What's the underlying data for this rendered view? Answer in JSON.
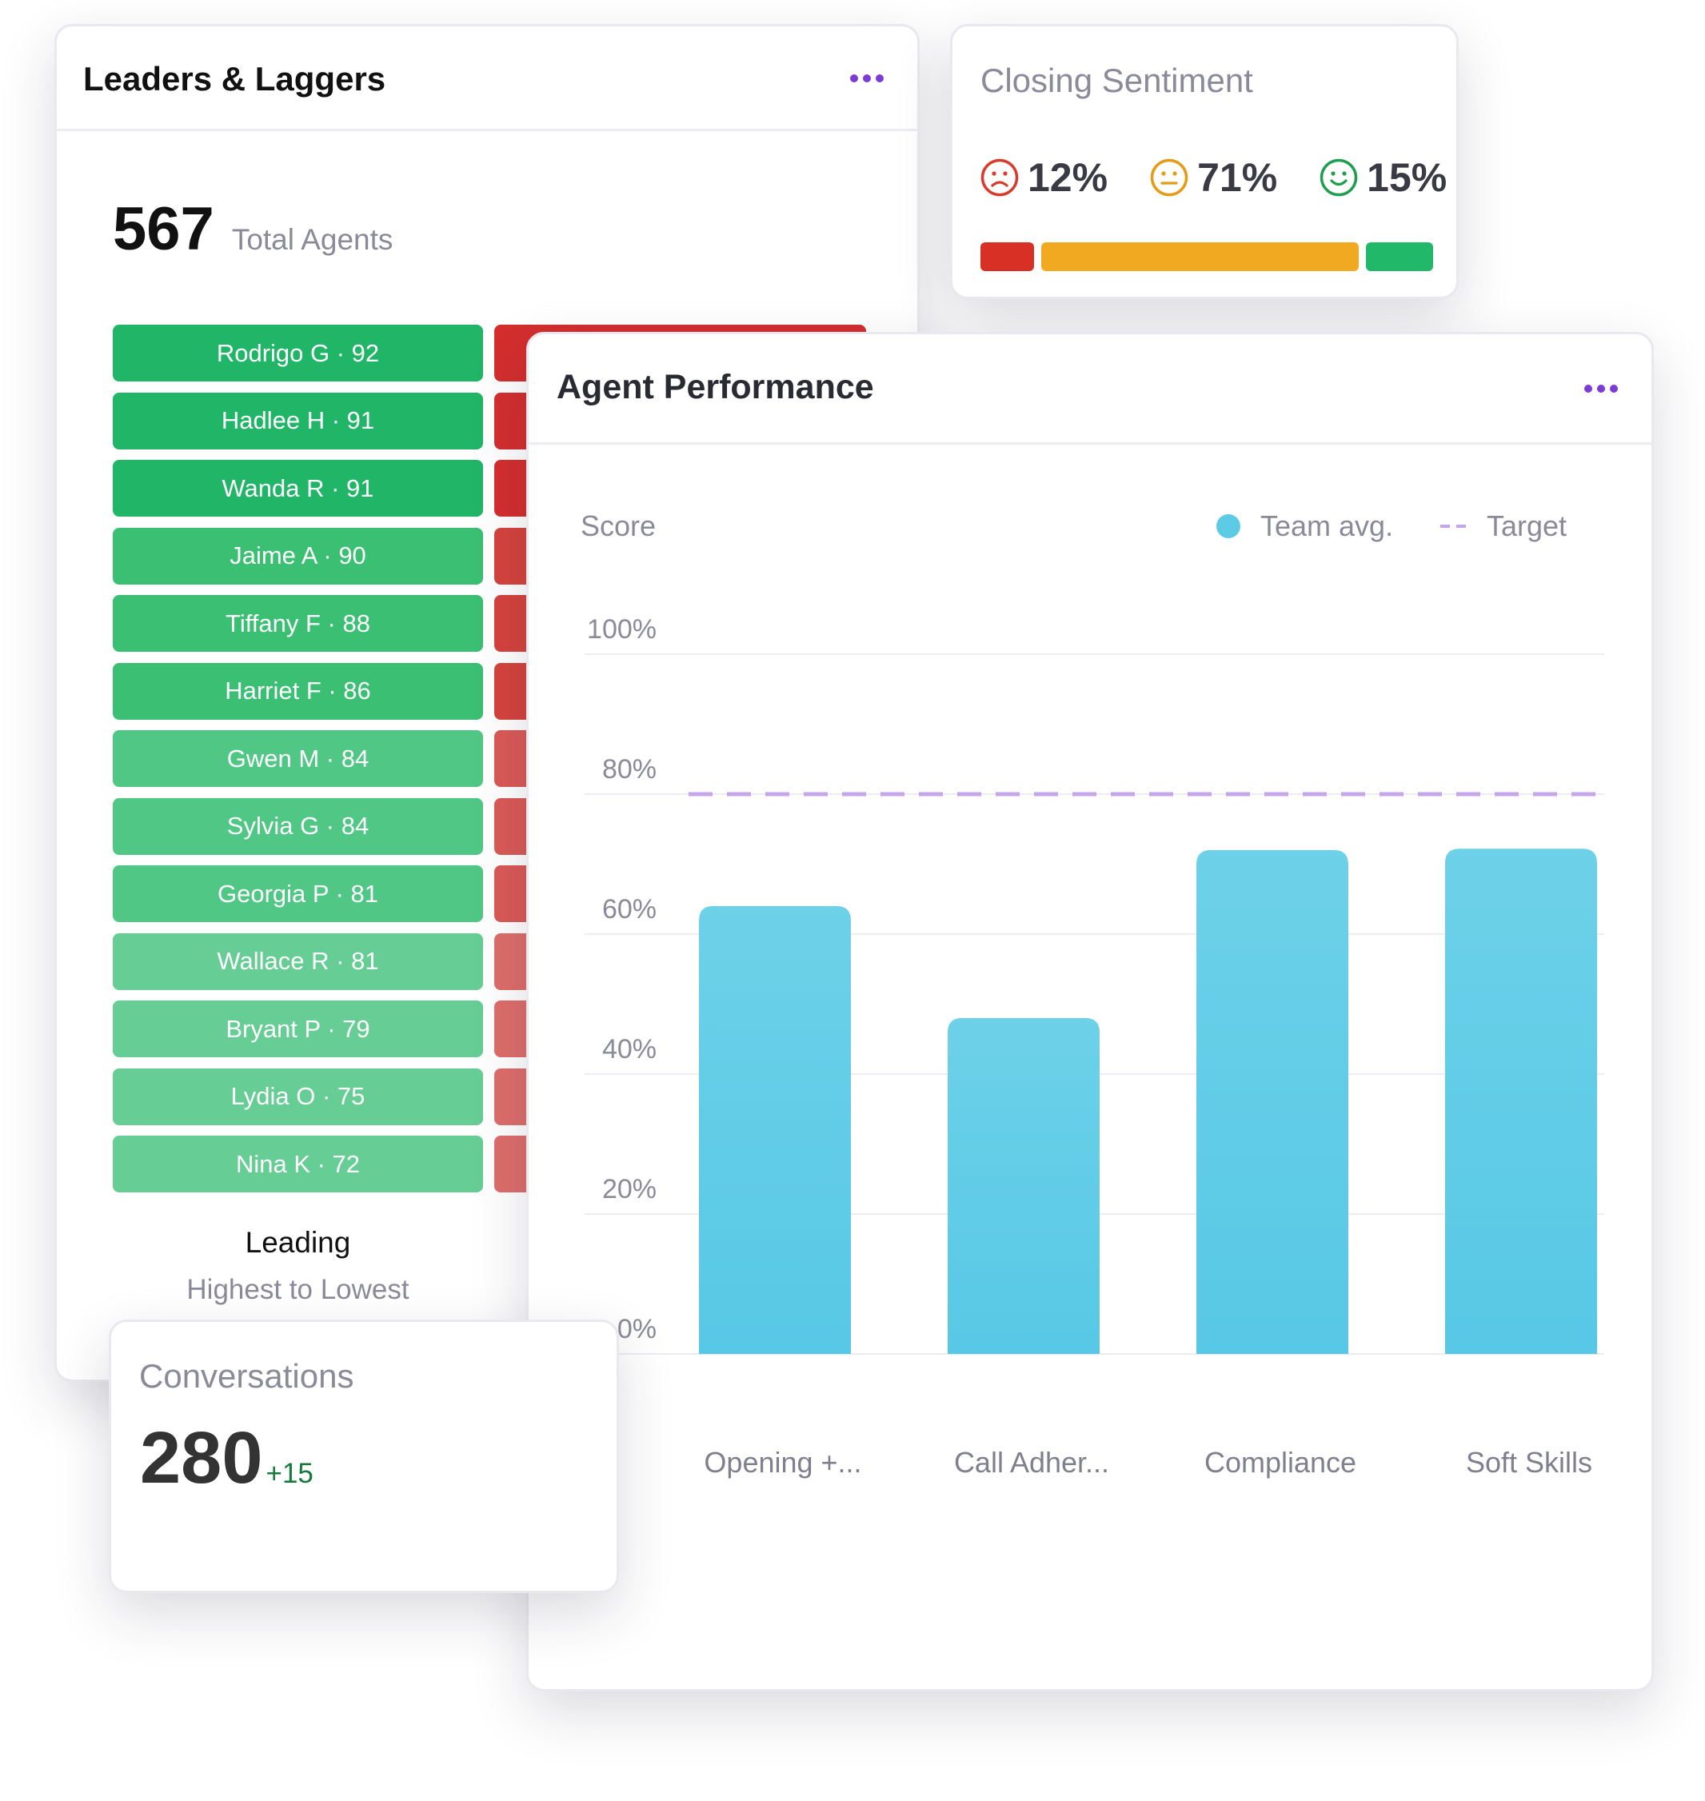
{
  "leaders_card": {
    "title": "Leaders & Laggers",
    "menu_icon": "more-horizontal-icon",
    "total_value": "567",
    "total_label": "Total Agents",
    "leaders": [
      {
        "label": "Rodrigo G · 92",
        "color": "#21b567"
      },
      {
        "label": "Hadlee H · 91",
        "color": "#21b567"
      },
      {
        "label": "Wanda R · 91",
        "color": "#21b567"
      },
      {
        "label": "Jaime A · 90",
        "color": "#3bbf73"
      },
      {
        "label": "Tiffany F · 88",
        "color": "#3bbf73"
      },
      {
        "label": "Harriet F · 86",
        "color": "#3bbf73"
      },
      {
        "label": "Gwen M · 84",
        "color": "#50c784"
      },
      {
        "label": "Sylvia G · 84",
        "color": "#50c784"
      },
      {
        "label": "Georgia P · 81",
        "color": "#50c784"
      },
      {
        "label": "Wallace R · 81",
        "color": "#66cd94"
      },
      {
        "label": "Bryant P · 79",
        "color": "#66cd94"
      },
      {
        "label": "Lydia O · 75",
        "color": "#66cd94"
      },
      {
        "label": "Nina K · 72",
        "color": "#66cd94"
      }
    ],
    "lagger_colors": [
      "#d42e2e",
      "#d42e2e",
      "#d42e2e",
      "#d6433d",
      "#d6433d",
      "#d6433d",
      "#da5a56",
      "#da5a56",
      "#da5a56",
      "#de6e6a",
      "#de6e6a",
      "#de6e6a",
      "#de6e6a"
    ],
    "leading_label": "Leading",
    "leading_sub": "Highest to Lowest"
  },
  "sentiment": {
    "title": "Closing Sentiment",
    "items": [
      {
        "icon": "sad-face-icon",
        "value": "12%",
        "color": "#d93a2b"
      },
      {
        "icon": "neutral-face-icon",
        "value": "71%",
        "color": "#e59b15"
      },
      {
        "icon": "happy-face-icon",
        "value": "15%",
        "color": "#1f9e50"
      }
    ],
    "bar_colors": [
      "#d93025",
      "#f0a920",
      "#22b86a"
    ]
  },
  "performance": {
    "title": "Agent Performance",
    "menu_icon": "more-horizontal-icon"
  },
  "chart_data": {
    "type": "bar",
    "ylabel": "Score",
    "categories": [
      "Opening +...",
      "Call Adher...",
      "Compliance",
      "Soft Skills"
    ],
    "series": [
      {
        "name": "Team avg.",
        "values": [
          64,
          48,
          72,
          72.2
        ],
        "color": "#5ecbe6"
      }
    ],
    "target": {
      "name": "Target",
      "value": 80,
      "color": "#c4a6ec"
    },
    "y_ticks": [
      "0%",
      "20%",
      "40%",
      "60%",
      "80%",
      "100%"
    ],
    "ylim": [
      0,
      100
    ],
    "grid": true,
    "legend": "top-right"
  },
  "conversations": {
    "title": "Conversations",
    "value": "280",
    "delta": "+15"
  }
}
